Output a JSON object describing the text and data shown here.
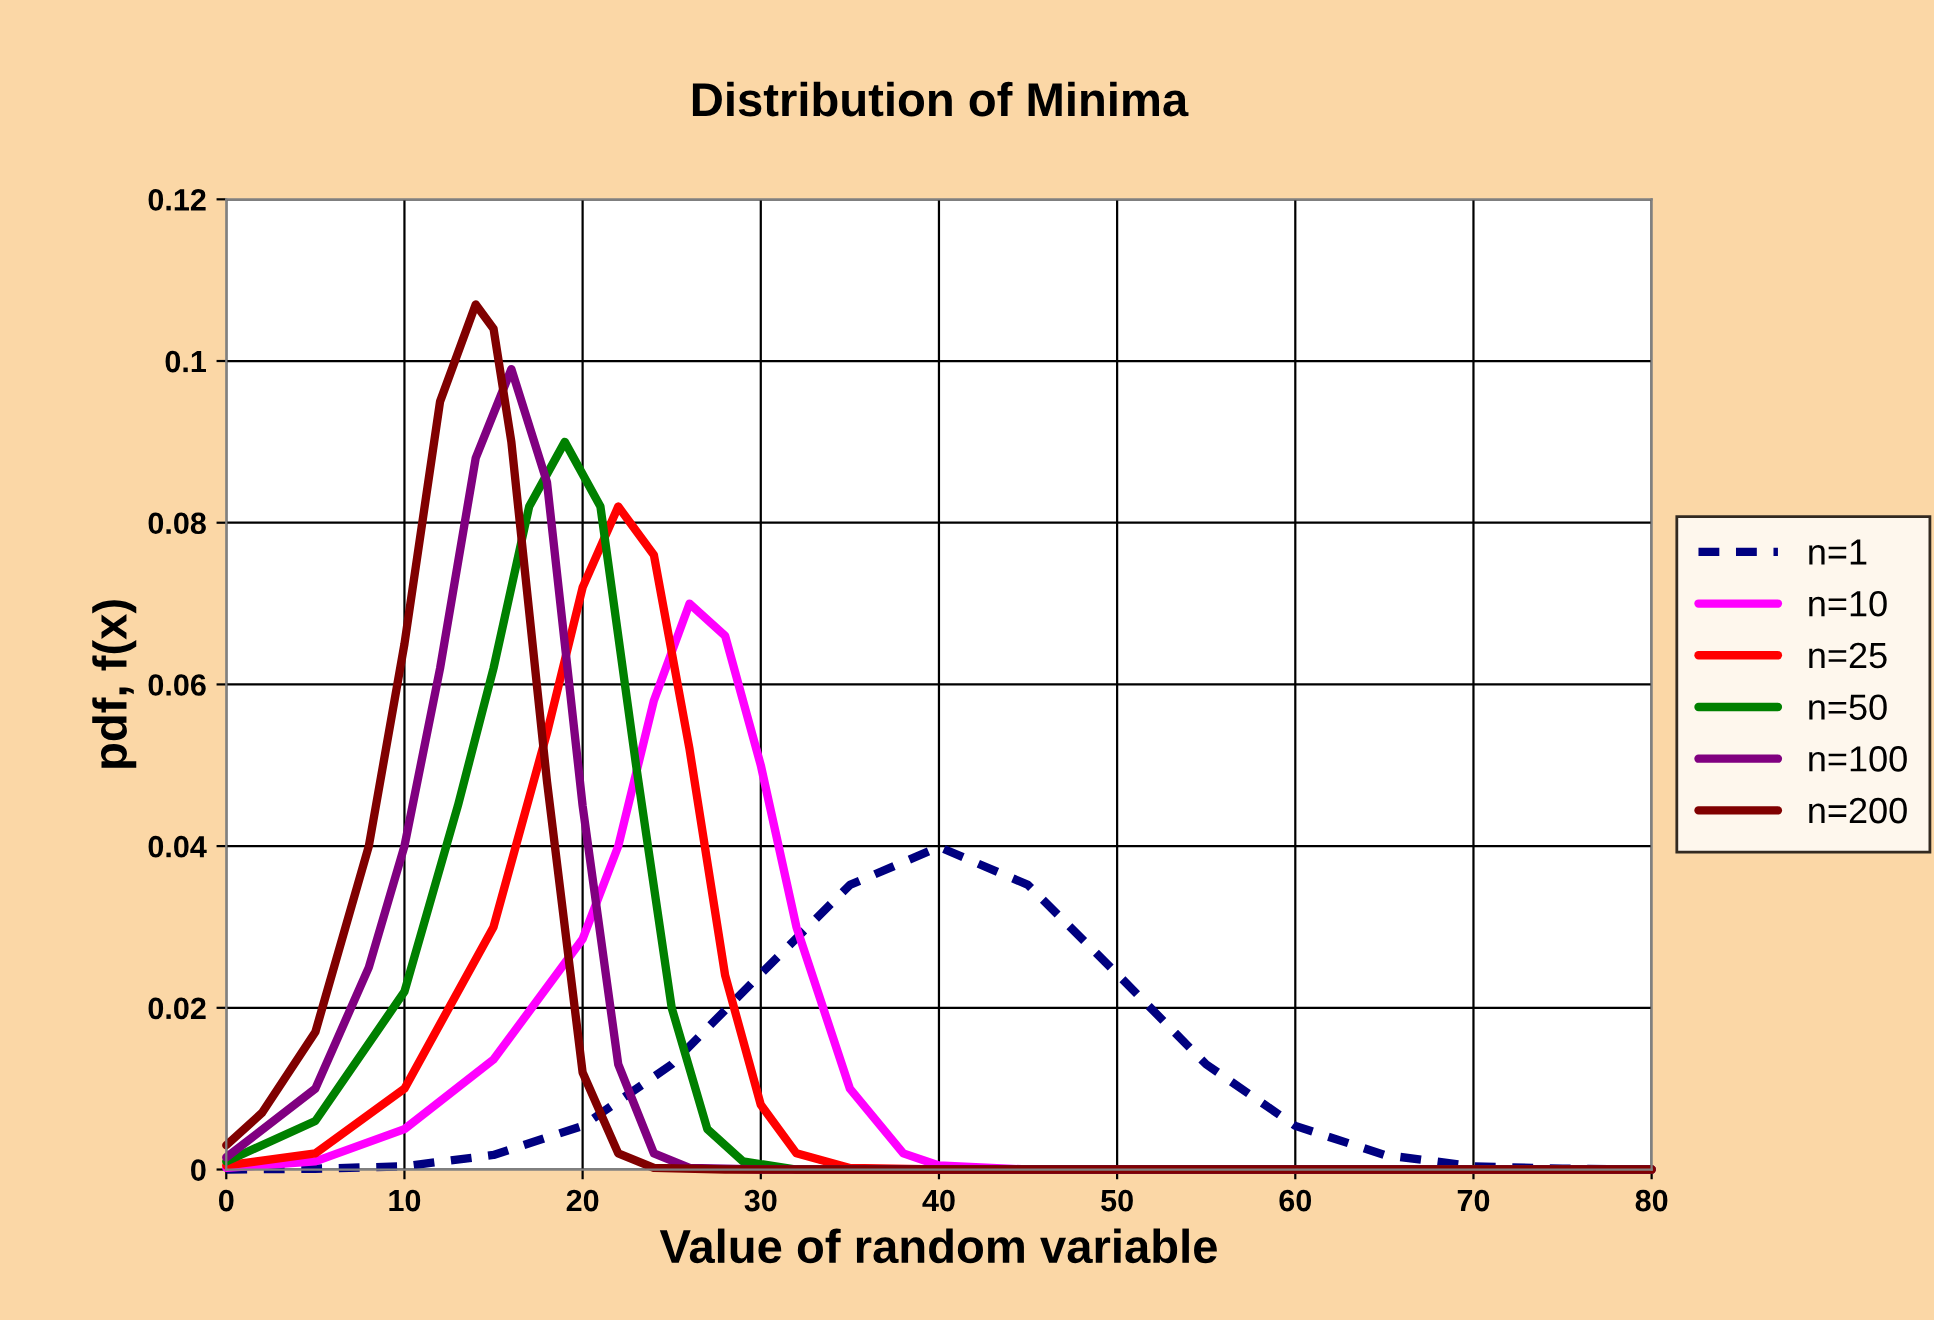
{
  "chart_data": {
    "type": "line",
    "title": "Distribution of Minima",
    "xlabel": "Value of random variable",
    "ylabel": "pdf, f(x)",
    "xlim": [
      0,
      80
    ],
    "xticks": [
      0,
      10,
      20,
      30,
      40,
      50,
      60,
      70,
      80
    ],
    "ylim": [
      0,
      0.12
    ],
    "yticks": [
      0,
      0.02,
      0.04,
      0.06,
      0.08,
      0.1,
      0.12
    ],
    "grid": true,
    "legend": "right",
    "marker": "none",
    "series": [
      {
        "name": "n=1",
        "color": "#000080",
        "line_style": "dashed",
        "x": [
          0,
          5,
          10,
          15,
          20,
          25,
          30,
          35,
          40,
          45,
          50,
          55,
          60,
          65,
          70,
          75,
          80
        ],
        "values": [
          0,
          0.0001,
          0.0004,
          0.0018,
          0.0054,
          0.013,
          0.0242,
          0.0352,
          0.0399,
          0.0352,
          0.0242,
          0.013,
          0.0054,
          0.0018,
          0.0004,
          0.0001,
          0
        ]
      },
      {
        "name": "n=10",
        "color": "#ff00ff",
        "line_style": "solid",
        "x": [
          0,
          5,
          10,
          15,
          20,
          22,
          24,
          26,
          28,
          30,
          32,
          35,
          38,
          40,
          45,
          80
        ],
        "values": [
          0.0002,
          0.001,
          0.005,
          0.0136,
          0.0285,
          0.04,
          0.058,
          0.07,
          0.066,
          0.05,
          0.03,
          0.01,
          0.002,
          0.0005,
          0,
          0
        ]
      },
      {
        "name": "n=25",
        "color": "#ff0000",
        "line_style": "solid",
        "x": [
          0,
          5,
          10,
          15,
          18,
          20,
          22,
          24,
          26,
          28,
          30,
          32,
          35,
          40,
          80
        ],
        "values": [
          0.0005,
          0.002,
          0.01,
          0.03,
          0.054,
          0.072,
          0.082,
          0.076,
          0.052,
          0.024,
          0.008,
          0.002,
          0.0002,
          0,
          0
        ]
      },
      {
        "name": "n=50",
        "color": "#008000",
        "line_style": "solid",
        "x": [
          0,
          5,
          10,
          13,
          15,
          17,
          19,
          21,
          23,
          25,
          27,
          29,
          32,
          80
        ],
        "values": [
          0.001,
          0.006,
          0.022,
          0.045,
          0.062,
          0.082,
          0.09,
          0.082,
          0.05,
          0.02,
          0.005,
          0.001,
          0,
          0
        ]
      },
      {
        "name": "n=100",
        "color": "#800080",
        "line_style": "solid",
        "x": [
          0,
          5,
          8,
          10,
          12,
          14,
          16,
          18,
          20,
          22,
          24,
          26,
          30,
          80
        ],
        "values": [
          0.0015,
          0.01,
          0.025,
          0.04,
          0.062,
          0.088,
          0.099,
          0.085,
          0.045,
          0.013,
          0.002,
          0.0002,
          0,
          0
        ]
      },
      {
        "name": "n=200",
        "color": "#800000",
        "line_style": "solid",
        "x": [
          0,
          2,
          5,
          8,
          10,
          12,
          14,
          15,
          16,
          18,
          20,
          22,
          24,
          28,
          80
        ],
        "values": [
          0.003,
          0.007,
          0.017,
          0.04,
          0.065,
          0.095,
          0.107,
          0.104,
          0.09,
          0.048,
          0.012,
          0.002,
          0.0002,
          0,
          0
        ]
      }
    ]
  }
}
